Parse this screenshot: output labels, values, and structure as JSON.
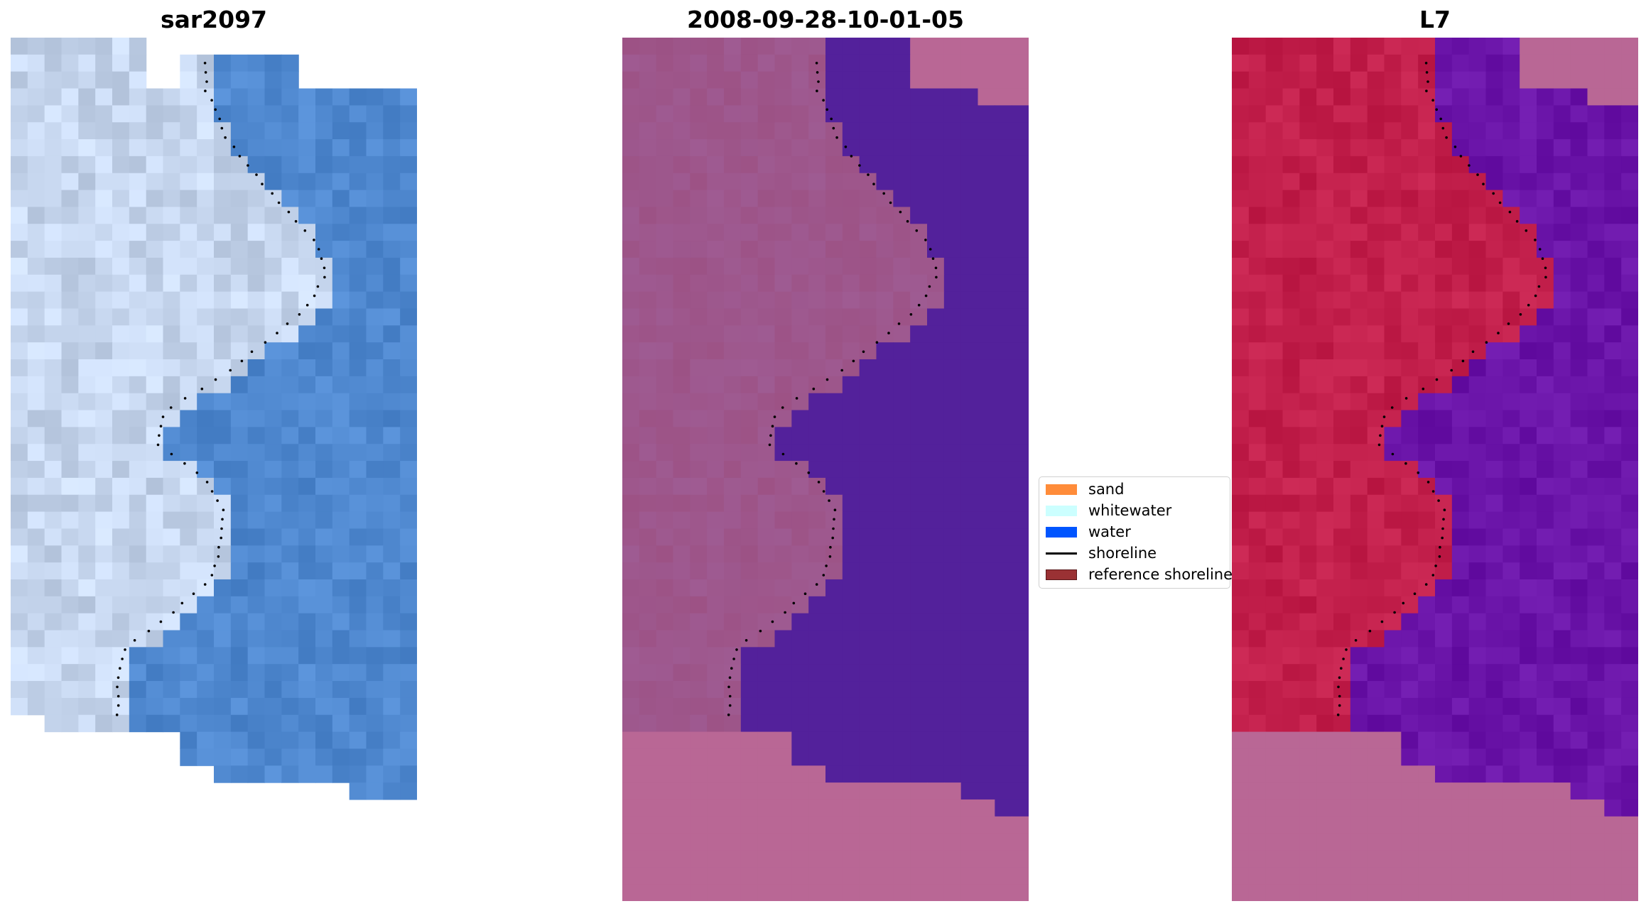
{
  "panels": [
    {
      "title": "sar2097",
      "kind": "rgb"
    },
    {
      "title": "2008-09-28-10-01-05",
      "kind": "classified"
    },
    {
      "title": "L7",
      "kind": "mndwi"
    }
  ],
  "legend": {
    "items": [
      {
        "label": "sand",
        "color": "#ff8c3a",
        "kind": "patch"
      },
      {
        "label": "whitewater",
        "color": "#ccffff",
        "kind": "patch"
      },
      {
        "label": "water",
        "color": "#0055ff",
        "kind": "patch"
      },
      {
        "label": "shoreline",
        "color": "#000000",
        "kind": "line"
      },
      {
        "label": "reference shoreline",
        "color": "#9a3134",
        "kind": "patch"
      }
    ]
  },
  "colors": {
    "overlay_magenta": "#b96795",
    "water_purple": "#53219b",
    "land_crimson": "#c21f4b",
    "sea_violet": "#6a14a8",
    "rgb_land": "#c6d6ee",
    "rgb_water": "#4f88cf"
  }
}
